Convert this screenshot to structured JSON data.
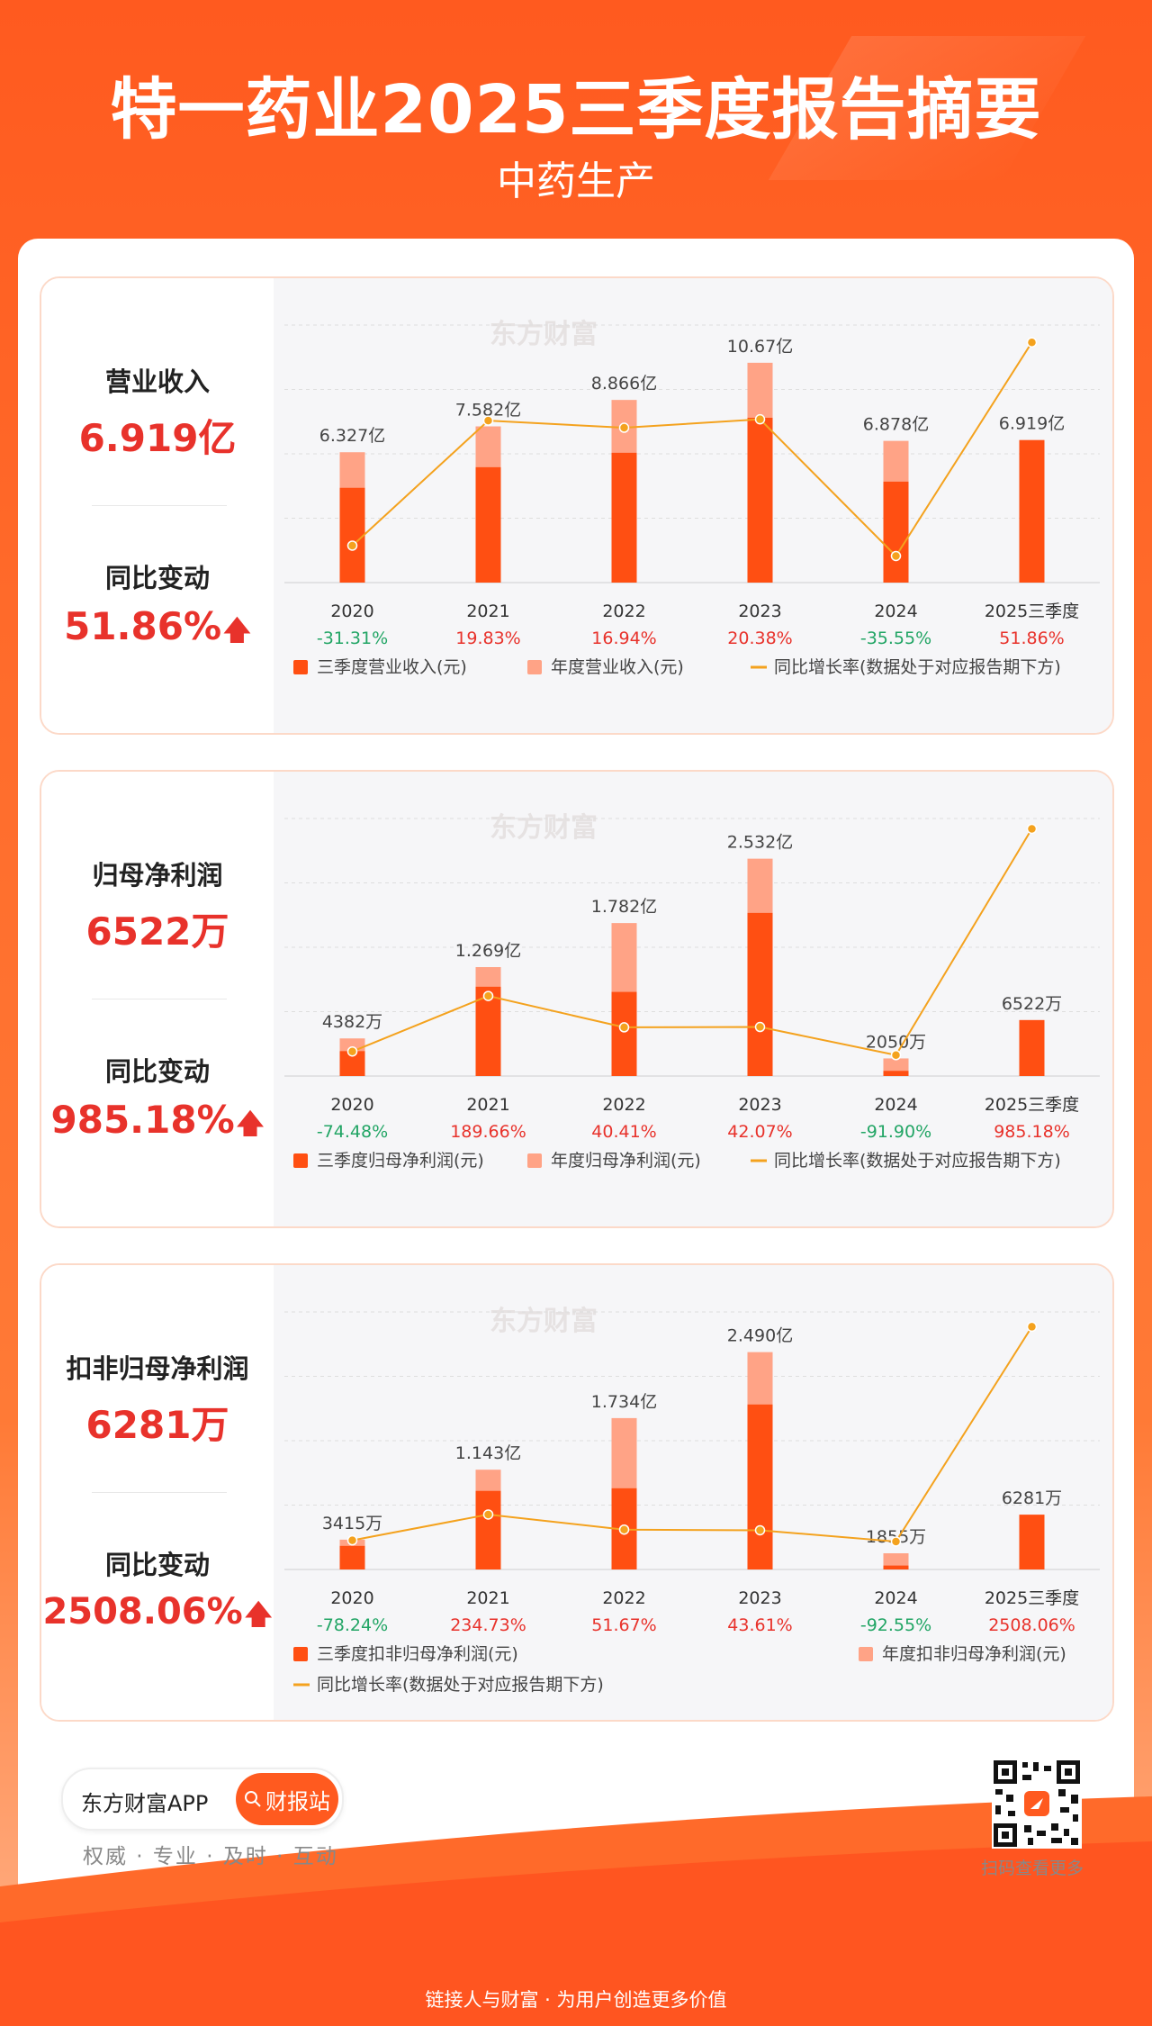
{
  "header": {
    "title": "特一药业2025三季度报告摘要",
    "subtitle": "中药生产"
  },
  "colors": {
    "q3": "#ff4f12",
    "annual": "#ffa386",
    "line": "#f4a21e",
    "up": "#e8322b",
    "down": "#22a565"
  },
  "watermark": "东方财富",
  "chart_data": [
    {
      "type": "bar",
      "metric_label": "营业收入",
      "metric_value": "6.919亿",
      "change_label": "同比变动",
      "change_value": "51.86%",
      "categories": [
        "2020",
        "2021",
        "2022",
        "2023",
        "2024",
        "2025三季度"
      ],
      "series": [
        {
          "name": "三季度营业收入(元)",
          "values": [
            4.6,
            5.6,
            6.3,
            8.0,
            4.9,
            6.919
          ]
        },
        {
          "name": "年度营业收入(元)",
          "values": [
            6.327,
            7.582,
            8.866,
            10.67,
            6.878,
            null
          ]
        }
      ],
      "bar_labels": [
        "6.327亿",
        "7.582亿",
        "8.866亿",
        "10.67亿",
        "6.878亿",
        "6.919亿"
      ],
      "yoy": [
        "-31.31%",
        "19.83%",
        "16.94%",
        "20.38%",
        "-35.55%",
        "51.86%"
      ],
      "yoy_values": [
        -31.31,
        19.83,
        16.94,
        20.38,
        -35.55,
        51.86
      ],
      "yoy_direction": [
        "down",
        "up",
        "up",
        "up",
        "down",
        "up"
      ],
      "line_name": "同比增长率(数据处于对应报告期下方)",
      "ymax": 12.5,
      "line_range": [
        -42,
        56
      ]
    },
    {
      "type": "bar",
      "metric_label": "归母净利润",
      "metric_value": "6522万",
      "change_label": "同比变动",
      "change_value": "985.18%",
      "categories": [
        "2020",
        "2021",
        "2022",
        "2023",
        "2024",
        "2025三季度"
      ],
      "series": [
        {
          "name": "三季度归母净利润(元)",
          "values": [
            0.29,
            1.04,
            0.98,
            1.9,
            0.06,
            0.6522
          ]
        },
        {
          "name": "年度归母净利润(元)",
          "values": [
            0.4382,
            1.269,
            1.782,
            2.532,
            0.205,
            null
          ]
        }
      ],
      "bar_labels": [
        "4382万",
        "1.269亿",
        "1.782亿",
        "2.532亿",
        "2050万",
        "6522万"
      ],
      "yoy": [
        "-74.48%",
        "189.66%",
        "40.41%",
        "42.07%",
        "-91.90%",
        "985.18%"
      ],
      "yoy_values": [
        -74.48,
        189.66,
        40.41,
        42.07,
        -91.9,
        985.18
      ],
      "yoy_direction": [
        "down",
        "up",
        "up",
        "up",
        "down",
        "up"
      ],
      "line_name": "同比增长率(数据处于对应报告期下方)",
      "ymax": 3.0,
      "line_range": [
        -140,
        1000
      ]
    },
    {
      "type": "bar",
      "metric_label": "扣非归母净利润",
      "metric_value": "6281万",
      "change_label": "同比变动",
      "change_value": "2508.06%",
      "categories": [
        "2020",
        "2021",
        "2022",
        "2023",
        "2024",
        "2025三季度"
      ],
      "series": [
        {
          "name": "三季度扣非归母净利润(元)",
          "values": [
            0.27,
            0.9,
            0.93,
            1.89,
            0.045,
            0.6281
          ]
        },
        {
          "name": "年度扣非归母净利润(元)",
          "values": [
            0.3415,
            1.143,
            1.734,
            2.49,
            0.1855,
            null
          ]
        }
      ],
      "bar_labels": [
        "3415万",
        "1.143亿",
        "1.734亿",
        "2.490亿",
        "1855万",
        "6281万"
      ],
      "yoy": [
        "-78.24%",
        "234.73%",
        "51.67%",
        "43.61%",
        "-92.55%",
        "2508.06%"
      ],
      "yoy_values": [
        -78.24,
        234.73,
        51.67,
        43.61,
        -92.55,
        2508.06
      ],
      "yoy_direction": [
        "down",
        "up",
        "up",
        "up",
        "down",
        "up"
      ],
      "line_name": "同比增长率(数据处于对应报告期下方)",
      "ymax": 2.95,
      "line_range": [
        -300,
        2600
      ]
    }
  ],
  "footer": {
    "app_name": "东方财富APP",
    "station_button": "财报站",
    "slogan": "权威 · 专业 · 及时 · 互动",
    "qr_caption": "扫码查看更多",
    "tagline": "链接人与财富 · 为用户创造更多价值"
  }
}
